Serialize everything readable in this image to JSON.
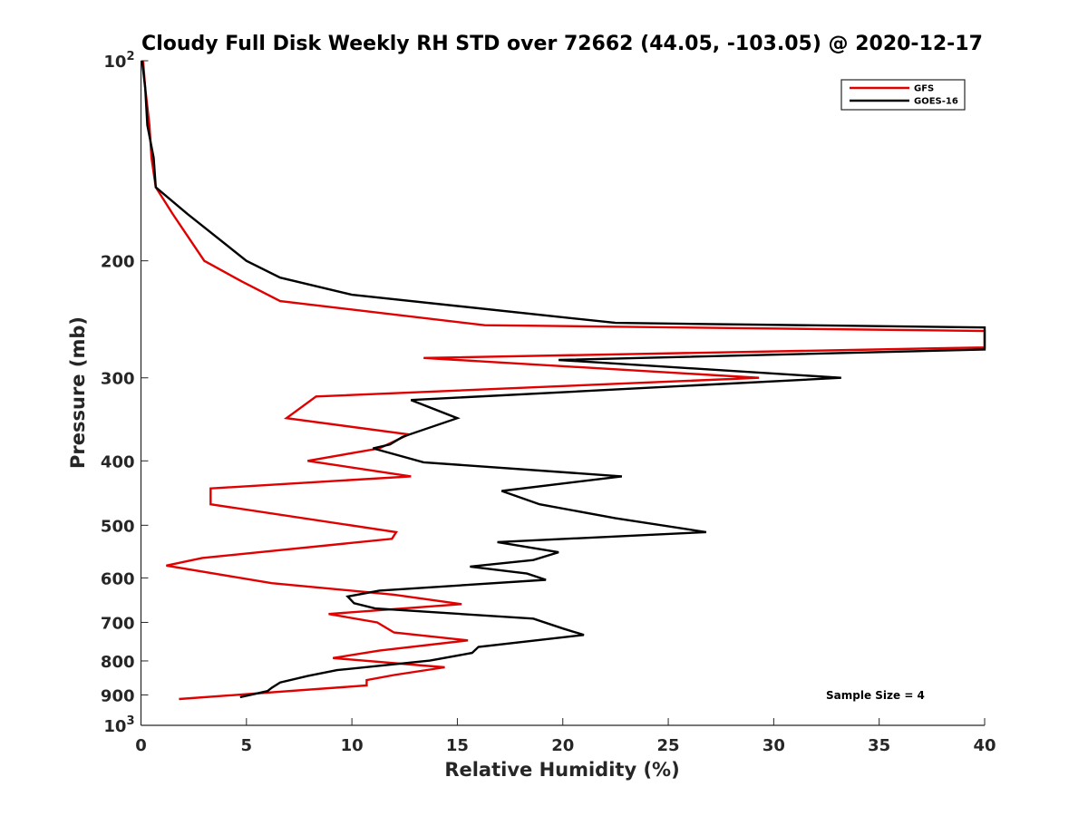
{
  "chart_data": {
    "type": "line",
    "title": "Cloudy Full Disk Weekly RH STD over 72662 (44.05, -103.05) @ 2020-12-17",
    "xlabel": "Relative Humidity (%)",
    "ylabel": "Pressure (mb)",
    "xlim": [
      0,
      40
    ],
    "ylim": [
      100,
      1000
    ],
    "y_scale": "log",
    "y_reversed": true,
    "grid": false,
    "legend_position": "top-right",
    "x_ticks": [
      0,
      5,
      10,
      15,
      20,
      25,
      30,
      35,
      40
    ],
    "y_ticks": [
      {
        "value": 100,
        "base": "10",
        "exp": "2"
      },
      {
        "value": 200,
        "label": "200"
      },
      {
        "value": 300,
        "label": "300"
      },
      {
        "value": 400,
        "label": "400"
      },
      {
        "value": 500,
        "label": "500"
      },
      {
        "value": 600,
        "label": "600"
      },
      {
        "value": 700,
        "label": "700"
      },
      {
        "value": 800,
        "label": "800"
      },
      {
        "value": 900,
        "label": "900"
      },
      {
        "value": 1000,
        "base": "10",
        "exp": "3"
      }
    ],
    "annotation": "Sample Size = 4",
    "series": [
      {
        "name": "GFS",
        "color": "#e00000",
        "points": [
          [
            0.1,
            100
          ],
          [
            0.2,
            110
          ],
          [
            0.4,
            125
          ],
          [
            0.5,
            140
          ],
          [
            0.7,
            155
          ],
          [
            1.5,
            170
          ],
          [
            3.0,
            200
          ],
          [
            4.8,
            215
          ],
          [
            6.6,
            230
          ],
          [
            16.3,
            250
          ],
          [
            40.0,
            255
          ],
          [
            40.0,
            270
          ],
          [
            13.4,
            280
          ],
          [
            29.3,
            300
          ],
          [
            8.3,
            320
          ],
          [
            6.9,
            345
          ],
          [
            12.7,
            365
          ],
          [
            11.3,
            383
          ],
          [
            7.9,
            400
          ],
          [
            12.8,
            422
          ],
          [
            3.3,
            440
          ],
          [
            3.3,
            465
          ],
          [
            12.1,
            512
          ],
          [
            11.9,
            524
          ],
          [
            2.9,
            560
          ],
          [
            1.2,
            575
          ],
          [
            6.2,
            611
          ],
          [
            12.0,
            636
          ],
          [
            15.2,
            657
          ],
          [
            8.9,
            680
          ],
          [
            11.2,
            700
          ],
          [
            12.0,
            725
          ],
          [
            15.5,
            745
          ],
          [
            11.3,
            772
          ],
          [
            9.1,
            792
          ],
          [
            14.4,
            818
          ],
          [
            12.0,
            840
          ],
          [
            10.7,
            855
          ],
          [
            10.7,
            871
          ],
          [
            1.8,
            913
          ]
        ]
      },
      {
        "name": "GOES-16",
        "color": "#000000",
        "points": [
          [
            0.05,
            100
          ],
          [
            0.2,
            110
          ],
          [
            0.3,
            125
          ],
          [
            0.6,
            140
          ],
          [
            0.7,
            155
          ],
          [
            2.2,
            170
          ],
          [
            5.0,
            200
          ],
          [
            6.6,
            212
          ],
          [
            10.0,
            225
          ],
          [
            22.5,
            248
          ],
          [
            40.0,
            252
          ],
          [
            40.0,
            272
          ],
          [
            19.8,
            282
          ],
          [
            33.2,
            300
          ],
          [
            12.8,
            324
          ],
          [
            15.0,
            345
          ],
          [
            12.4,
            368
          ],
          [
            11.8,
            378
          ],
          [
            11.0,
            383
          ],
          [
            13.4,
            402
          ],
          [
            22.8,
            422
          ],
          [
            17.1,
            444
          ],
          [
            18.9,
            465
          ],
          [
            22.5,
            488
          ],
          [
            26.8,
            512
          ],
          [
            16.9,
            530
          ],
          [
            19.8,
            549
          ],
          [
            18.6,
            564
          ],
          [
            15.6,
            577
          ],
          [
            18.3,
            591
          ],
          [
            19.2,
            604
          ],
          [
            11.3,
            627
          ],
          [
            9.8,
            640
          ],
          [
            10.1,
            655
          ],
          [
            11.1,
            667
          ],
          [
            18.6,
            691
          ],
          [
            20.0,
            715
          ],
          [
            21.0,
            731
          ],
          [
            16.0,
            762
          ],
          [
            15.7,
            778
          ],
          [
            13.7,
            799
          ],
          [
            9.3,
            826
          ],
          [
            7.9,
            843
          ],
          [
            6.6,
            862
          ],
          [
            6.2,
            878
          ],
          [
            6.0,
            888
          ],
          [
            4.7,
            907
          ]
        ]
      }
    ]
  }
}
